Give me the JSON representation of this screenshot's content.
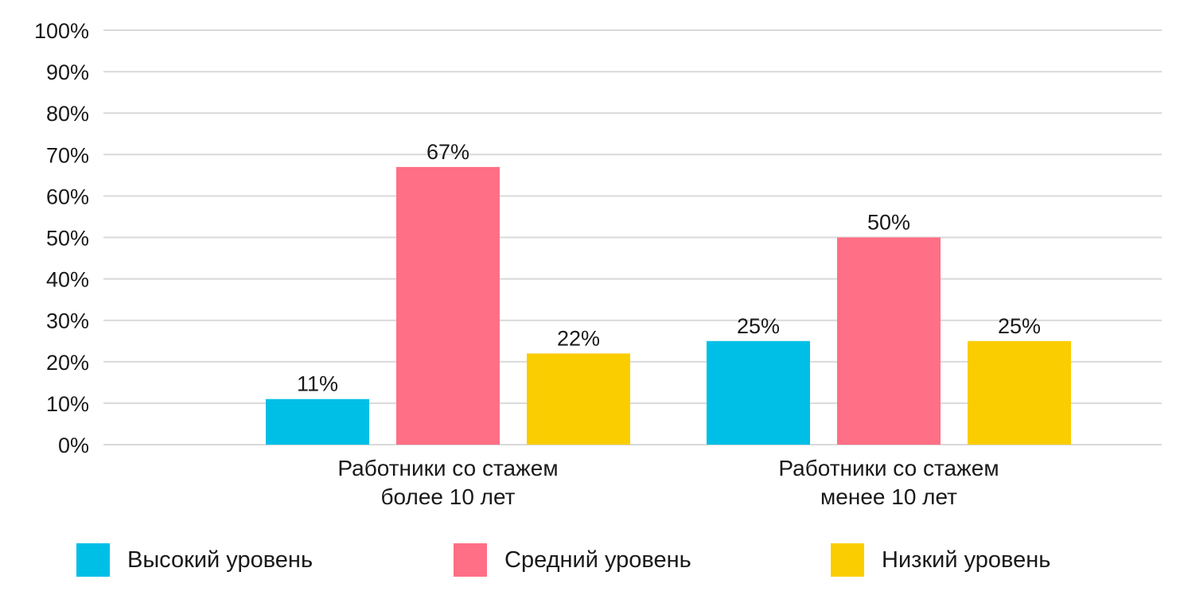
{
  "chart_data": {
    "type": "bar",
    "categories": [
      [
        "Работники со стажем",
        "более 10 лет"
      ],
      [
        "Работники со стажем",
        "менее 10 лет"
      ]
    ],
    "series": [
      {
        "name": "Высокий уровень",
        "color": "#00BFE6",
        "values": [
          11,
          25
        ],
        "value_labels": [
          "11%",
          "25%"
        ]
      },
      {
        "name": "Средний уровень",
        "color": "#FF6F85",
        "values": [
          67,
          50
        ],
        "value_labels": [
          "67%",
          "50%"
        ]
      },
      {
        "name": "Низкий уровень",
        "color": "#FACD00",
        "values": [
          22,
          25
        ],
        "value_labels": [
          "22%",
          "25%"
        ]
      }
    ],
    "ylim": [
      0,
      100
    ],
    "yticks": [
      "0%",
      "10%",
      "20%",
      "30%",
      "40%",
      "50%",
      "60%",
      "70%",
      "80%",
      "90%",
      "100%"
    ],
    "grid": true,
    "legend_position": "bottom",
    "gridline_color": "#D9D9D9"
  }
}
